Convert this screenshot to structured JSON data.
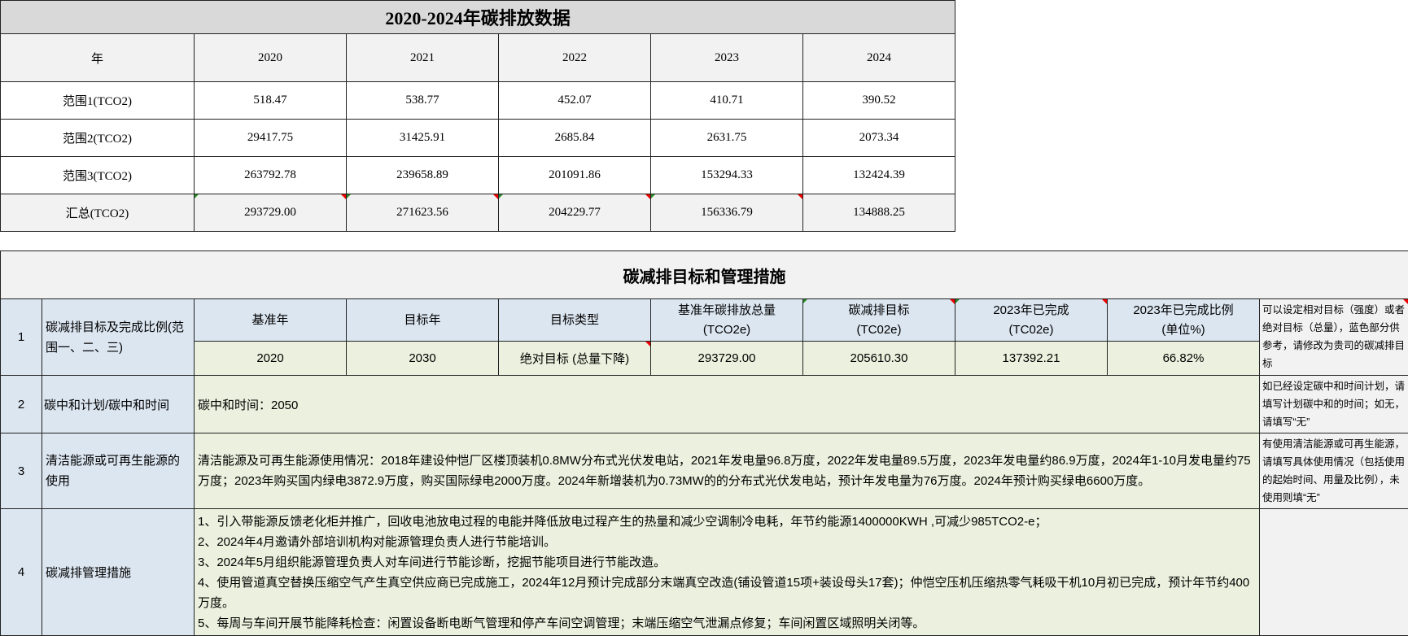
{
  "emissions": {
    "title": "2020-2024年碳排放数据",
    "header": [
      "年",
      "2020",
      "2021",
      "2022",
      "2023",
      "2024"
    ],
    "rows": [
      [
        "范围1(TCO2)",
        "518.47",
        "538.77",
        "452.07",
        "410.71",
        "390.52"
      ],
      [
        "范围2(TCO2)",
        "29417.75",
        "31425.91",
        "2685.84",
        "2631.75",
        "2073.34"
      ],
      [
        "范围3(TCO2)",
        "263792.78",
        "239658.89",
        "201091.86",
        "153294.33",
        "132424.39"
      ]
    ],
    "total": [
      "汇总(TCO2)",
      "293729.00",
      "271623.56",
      "204229.77",
      "156336.79",
      "134888.25"
    ]
  },
  "targets": {
    "title": "碳减排目标和管理措施",
    "r1": {
      "no": "1",
      "label": "碳减排目标及完成比例(范围一、二、三)",
      "headers": [
        "基准年",
        "目标年",
        "目标类型",
        "基准年碳排放总量\n(TCO2e)",
        "碳减排目标\n(TC02e)",
        "2023年已完成\n(TC02e)",
        "2023年已完成比例\n(单位%)"
      ],
      "values": [
        "2020",
        "2030",
        "绝对目标 (总量下降)",
        "293729.00",
        "205610.30",
        "137392.21",
        "66.82%"
      ],
      "note": "可以设定相对目标（强度）或者绝对目标（总量），蓝色部分供参考，请修改为贵司的碳减排目标"
    },
    "r2": {
      "no": "2",
      "label": "碳中和计划/碳中和时间",
      "content": "碳中和时间：2050",
      "note": "如已经设定碳中和时间计划，请填写计划碳中和的时间；如无，请填写“无”"
    },
    "r3": {
      "no": "3",
      "label": "清洁能源或可再生能源的使用",
      "content": "清洁能源及可再生能源使用情况：2018年建设仲恺厂区楼顶装机0.8MW分布式光伏发电站，2021年发电量96.8万度，2022年发电量89.5万度，2023年发电量约86.9万度，2024年1-10月发电量约75万度；2023年购买国内绿电3872.9万度，购买国际绿电2000万度。2024年新增装机为0.73MW的的分布式光伏发电站，预计年发电量为76万度。2024年预计购买绿电6600万度。",
      "note": "有使用清洁能源或可再生能源，请填写具体使用情况（包括使用的起始时间、用量及比例），未使用则填“无”"
    },
    "r4": {
      "no": "4",
      "label": "碳减排管理措施",
      "lines": [
        "1、引入带能源反馈老化柜并推广，回收电池放电过程的电能并降低放电过程产生的热量和减少空调制冷电耗，年节约能源1400000KWH ,可减少985TCO2-e；",
        "2、2024年4月邀请外部培训机构对能源管理负责人进行节能培训。",
        "3、2024年5月组织能源管理负责人对车间进行节能诊断，挖掘节能项目进行节能改造。",
        "4、使用管道真空替换压缩空气产生真空供应商已完成施工，2024年12月预计完成部分末端真空改造(铺设管道15项+装设母头17套)；仲恺空压机压缩热零气耗吸干机10月初已完成，预计年节约400万度。",
        "5、每周与车间开展节能降耗检查：闲置设备断电断气管理和停产车间空调管理；末端压缩空气泄漏点修复；车间闲置区域照明关闭等。"
      ],
      "note": ""
    }
  }
}
